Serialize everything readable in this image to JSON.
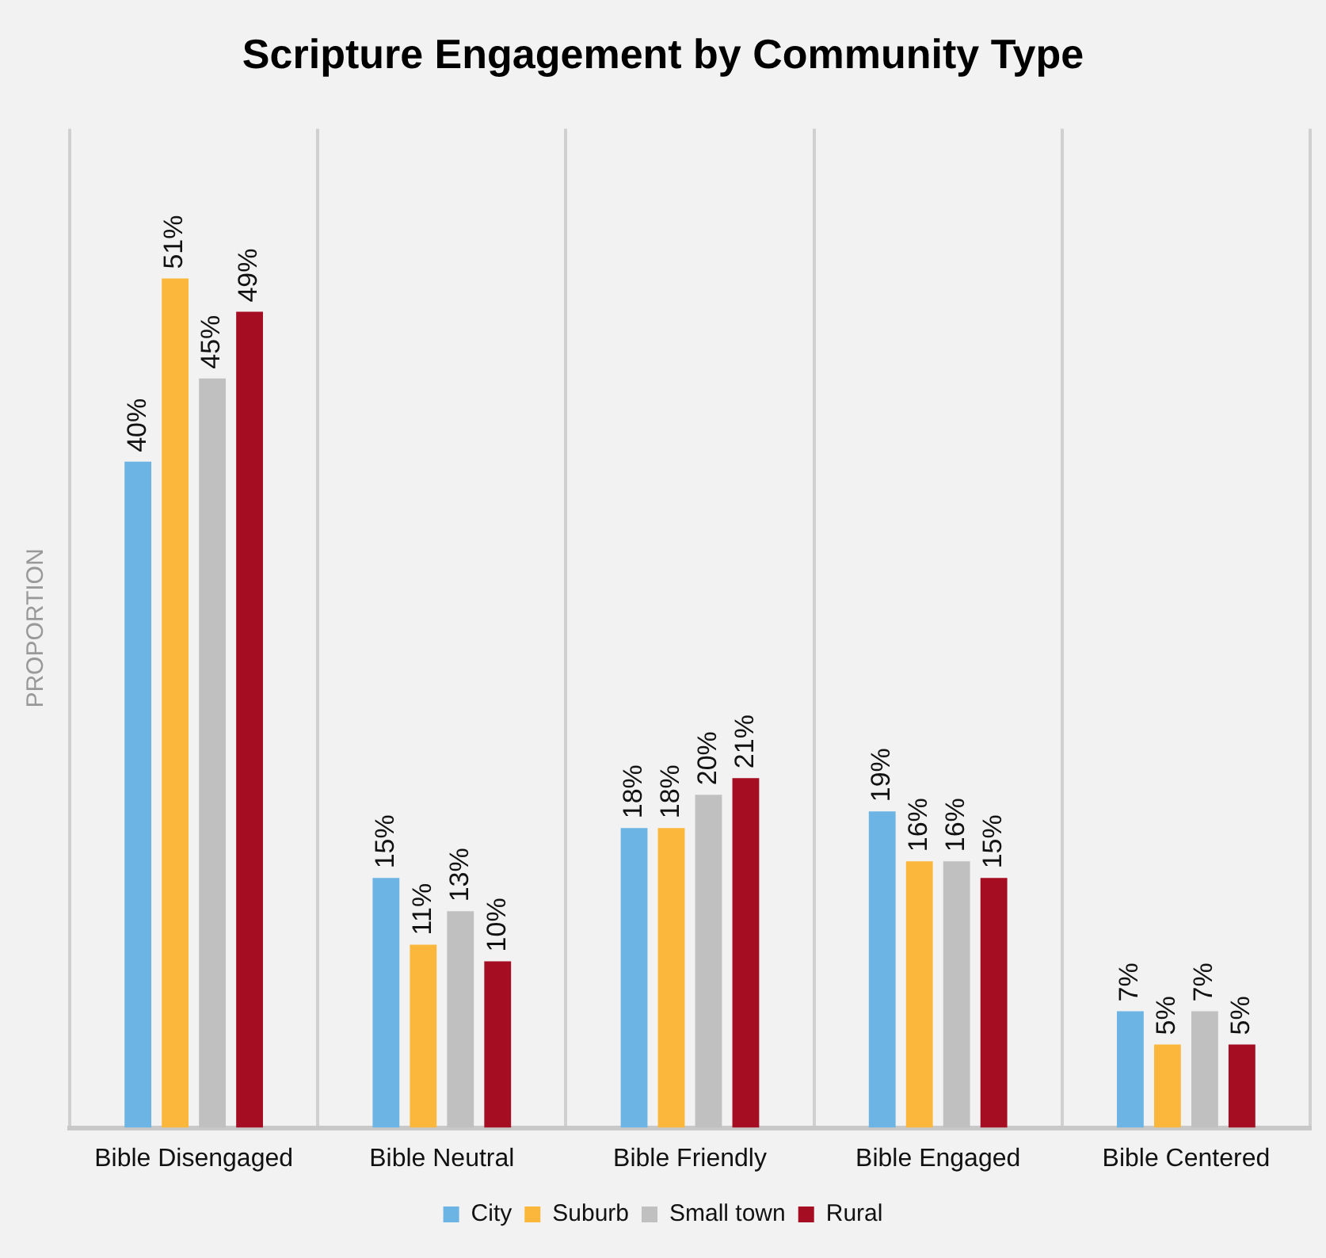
{
  "chart_data": {
    "type": "bar",
    "title": "Scripture Engagement by Community Type",
    "ylabel": "PROPORTION",
    "categories": [
      "Bible Disengaged",
      "Bible Neutral",
      "Bible Friendly",
      "Bible Engaged",
      "Bible Centered"
    ],
    "series": [
      {
        "name": "City",
        "color": "#6cb4e4",
        "values": [
          40,
          15,
          18,
          19,
          7
        ],
        "value_labels": [
          "40%",
          "15%",
          "18%",
          "19%",
          "7%"
        ]
      },
      {
        "name": "Suburb",
        "color": "#fbb73c",
        "values": [
          51,
          11,
          18,
          16,
          5
        ],
        "value_labels": [
          "51%",
          "11%",
          "18%",
          "16%",
          "5%"
        ]
      },
      {
        "name": "Small town",
        "color": "#c0c0c0",
        "values": [
          45,
          13,
          20,
          16,
          7
        ],
        "value_labels": [
          "45%",
          "13%",
          "20%",
          "16%",
          "7%"
        ]
      },
      {
        "name": "Rural",
        "color": "#a50d22",
        "values": [
          49,
          10,
          21,
          15,
          5
        ],
        "value_labels": [
          "49%",
          "10%",
          "21%",
          "15%",
          "5%"
        ]
      }
    ],
    "grid": "x",
    "legend": "bottom"
  }
}
